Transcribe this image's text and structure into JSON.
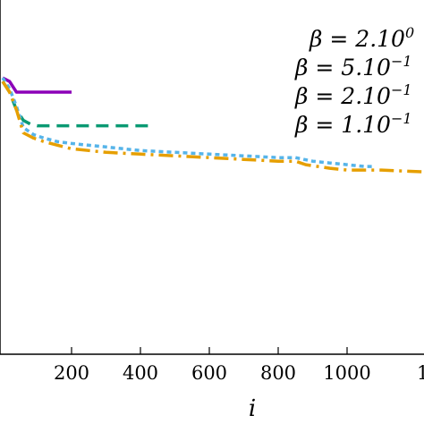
{
  "chart_data": {
    "type": "line",
    "title": "",
    "xlabel": "i",
    "ylabel": "",
    "xlim": [
      -10,
      1220
    ],
    "ylim": [
      0,
      1
    ],
    "x_ticks": [
      200,
      400,
      600,
      800,
      1000
    ],
    "x_tick_labels": [
      "200",
      "400",
      "600",
      "800",
      "1000"
    ],
    "x_tick_label_partial": "1",
    "grid": false,
    "legend_position": "top-right",
    "series": [
      {
        "name": "β = 2.10⁰",
        "legend_base": "β = 2.10",
        "legend_exp": "0",
        "color": "#8c00b8",
        "dash": "solid",
        "x": [
          0,
          20,
          40,
          70,
          200
        ],
        "y": [
          0.78,
          0.77,
          0.74,
          0.74,
          0.74
        ]
      },
      {
        "name": "β = 5.10⁻¹",
        "legend_base": "β = 5.10",
        "legend_exp": "−1",
        "color": "#0a9a73",
        "dash": "dashed",
        "x": [
          0,
          20,
          40,
          60,
          80,
          100,
          130,
          200,
          300,
          430
        ],
        "y": [
          0.77,
          0.74,
          0.69,
          0.66,
          0.65,
          0.645,
          0.645,
          0.645,
          0.645,
          0.645
        ]
      },
      {
        "name": "β = 2.10⁻¹",
        "legend_base": "β = 2.10",
        "legend_exp": "−1",
        "color": "#56b4e9",
        "dash": "dotted",
        "x": [
          0,
          20,
          40,
          60,
          90,
          120,
          160,
          200,
          300,
          400,
          500,
          600,
          700,
          800,
          850,
          900,
          950,
          1000,
          1050,
          1080
        ],
        "y": [
          0.78,
          0.75,
          0.7,
          0.64,
          0.62,
          0.61,
          0.6,
          0.595,
          0.585,
          0.575,
          0.57,
          0.565,
          0.56,
          0.555,
          0.555,
          0.545,
          0.54,
          0.535,
          0.53,
          0.53
        ]
      },
      {
        "name": "β = 1.10⁻¹",
        "legend_base": "β = 1.10",
        "legend_exp": "−1",
        "color": "#e69f00",
        "dash": "dashdot",
        "x": [
          0,
          20,
          40,
          60,
          90,
          120,
          160,
          200,
          300,
          400,
          500,
          600,
          700,
          800,
          850,
          880,
          950,
          1000,
          1100,
          1220
        ],
        "y": [
          0.77,
          0.74,
          0.69,
          0.625,
          0.61,
          0.6,
          0.59,
          0.58,
          0.57,
          0.565,
          0.56,
          0.555,
          0.55,
          0.545,
          0.545,
          0.535,
          0.525,
          0.52,
          0.52,
          0.515
        ]
      }
    ]
  }
}
